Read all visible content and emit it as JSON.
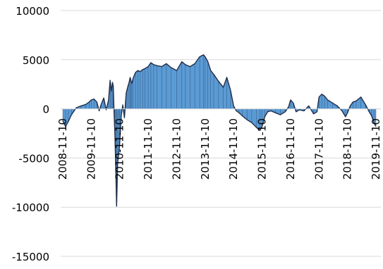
{
  "chart_data": {
    "type": "area",
    "title": "",
    "xlabel": "",
    "ylabel": "",
    "ylim": [
      -15000,
      10000
    ],
    "yticks": [
      10000,
      5000,
      0,
      -5000,
      -10000,
      -15000
    ],
    "ytick_labels": [
      "10000",
      "5000",
      "0",
      "-5000",
      "-10000",
      "-15000"
    ],
    "xlim": [
      "2008-11-10",
      "2019-11-10"
    ],
    "xtick_labels": [
      "2008-11-10",
      "2009-11-10",
      "2010-11-10",
      "2011-11-10",
      "2012-11-10",
      "2013-11-10",
      "2014-11-10",
      "2015-11-10",
      "2016-11-10",
      "2017-11-10",
      "2018-11-10",
      "2019-11-10"
    ],
    "grid": true,
    "legend": "none",
    "colors": {
      "fill": "#5b9bd5",
      "line": "#1f2d4a",
      "grid": "#d9d9d9"
    },
    "series": [
      {
        "x": [
          "2008-11-10",
          "2008-12-15",
          "2009-01-20",
          "2009-03-01",
          "2009-05-01",
          "2009-07-01",
          "2009-09-01",
          "2009-10-15",
          "2009-11-10",
          "2009-12-15",
          "2010-01-20",
          "2010-02-20",
          "2010-03-20",
          "2010-04-20",
          "2010-05-20",
          "2010-06-20",
          "2010-07-10",
          "2010-07-25",
          "2010-08-10",
          "2010-08-20",
          "2010-09-01",
          "2010-09-10",
          "2010-09-20",
          "2010-10-01",
          "2010-10-15",
          "2010-11-01",
          "2010-11-10",
          "2010-12-01",
          "2010-12-20",
          "2011-01-10",
          "2011-02-01",
          "2011-02-20",
          "2011-03-10",
          "2011-03-25",
          "2011-04-05",
          "2011-04-15",
          "2011-05-01",
          "2011-06-01",
          "2011-07-01",
          "2011-08-01",
          "2011-09-01",
          "2011-10-01",
          "2011-11-10",
          "2011-12-15",
          "2012-01-20",
          "2012-03-01",
          "2012-05-01",
          "2012-07-01",
          "2012-09-01",
          "2012-11-10",
          "2013-01-15",
          "2013-03-01",
          "2013-05-01",
          "2013-07-01",
          "2013-09-01",
          "2013-10-20",
          "2013-11-10",
          "2013-12-15",
          "2014-01-20",
          "2014-03-01",
          "2014-05-01",
          "2014-07-01",
          "2014-08-15",
          "2014-10-01",
          "2014-11-10",
          "2014-12-15",
          "2015-01-20",
          "2015-03-01",
          "2015-05-01",
          "2015-07-01",
          "2015-09-01",
          "2015-10-15",
          "2015-11-10",
          "2015-12-15",
          "2016-01-20",
          "2016-03-01",
          "2016-05-01",
          "2016-07-01",
          "2016-09-01",
          "2016-10-15",
          "2016-11-10",
          "2016-12-15",
          "2017-01-20",
          "2017-03-01",
          "2017-05-01",
          "2017-07-01",
          "2017-09-01",
          "2017-10-15",
          "2017-11-10",
          "2017-12-15",
          "2018-01-20",
          "2018-03-01",
          "2018-05-01",
          "2018-07-01",
          "2018-09-01",
          "2018-10-15",
          "2018-11-10",
          "2018-12-15",
          "2019-01-20",
          "2019-03-01",
          "2019-05-01",
          "2019-07-01",
          "2019-08-15",
          "2019-09-15",
          "2019-10-15",
          "2019-11-10"
        ],
        "values": [
          -1200,
          -1800,
          -1300,
          -600,
          100,
          300,
          450,
          700,
          900,
          1000,
          700,
          -200,
          500,
          1100,
          -100,
          900,
          2900,
          1800,
          2700,
          2300,
          -700,
          -2600,
          -6000,
          -9900,
          -5500,
          -4300,
          -3500,
          -600,
          400,
          -900,
          1600,
          2200,
          2700,
          3200,
          2800,
          2600,
          3100,
          3700,
          3900,
          3800,
          4000,
          4100,
          4300,
          4700,
          4500,
          4400,
          4300,
          4600,
          4200,
          3900,
          4800,
          4500,
          4300,
          4600,
          5300,
          5500,
          5300,
          4800,
          3900,
          3500,
          2800,
          2200,
          3200,
          1900,
          300,
          -200,
          -400,
          -700,
          -1100,
          -1400,
          -1900,
          -2200,
          -1800,
          -800,
          -300,
          -200,
          -400,
          -600,
          -300,
          200,
          900,
          600,
          -300,
          -100,
          -200,
          300,
          -500,
          -300,
          1200,
          1500,
          1300,
          900,
          600,
          300,
          -200,
          -800,
          -400,
          300,
          700,
          800,
          1200,
          400,
          -300,
          -700,
          -1400,
          -1800
        ]
      }
    ]
  }
}
